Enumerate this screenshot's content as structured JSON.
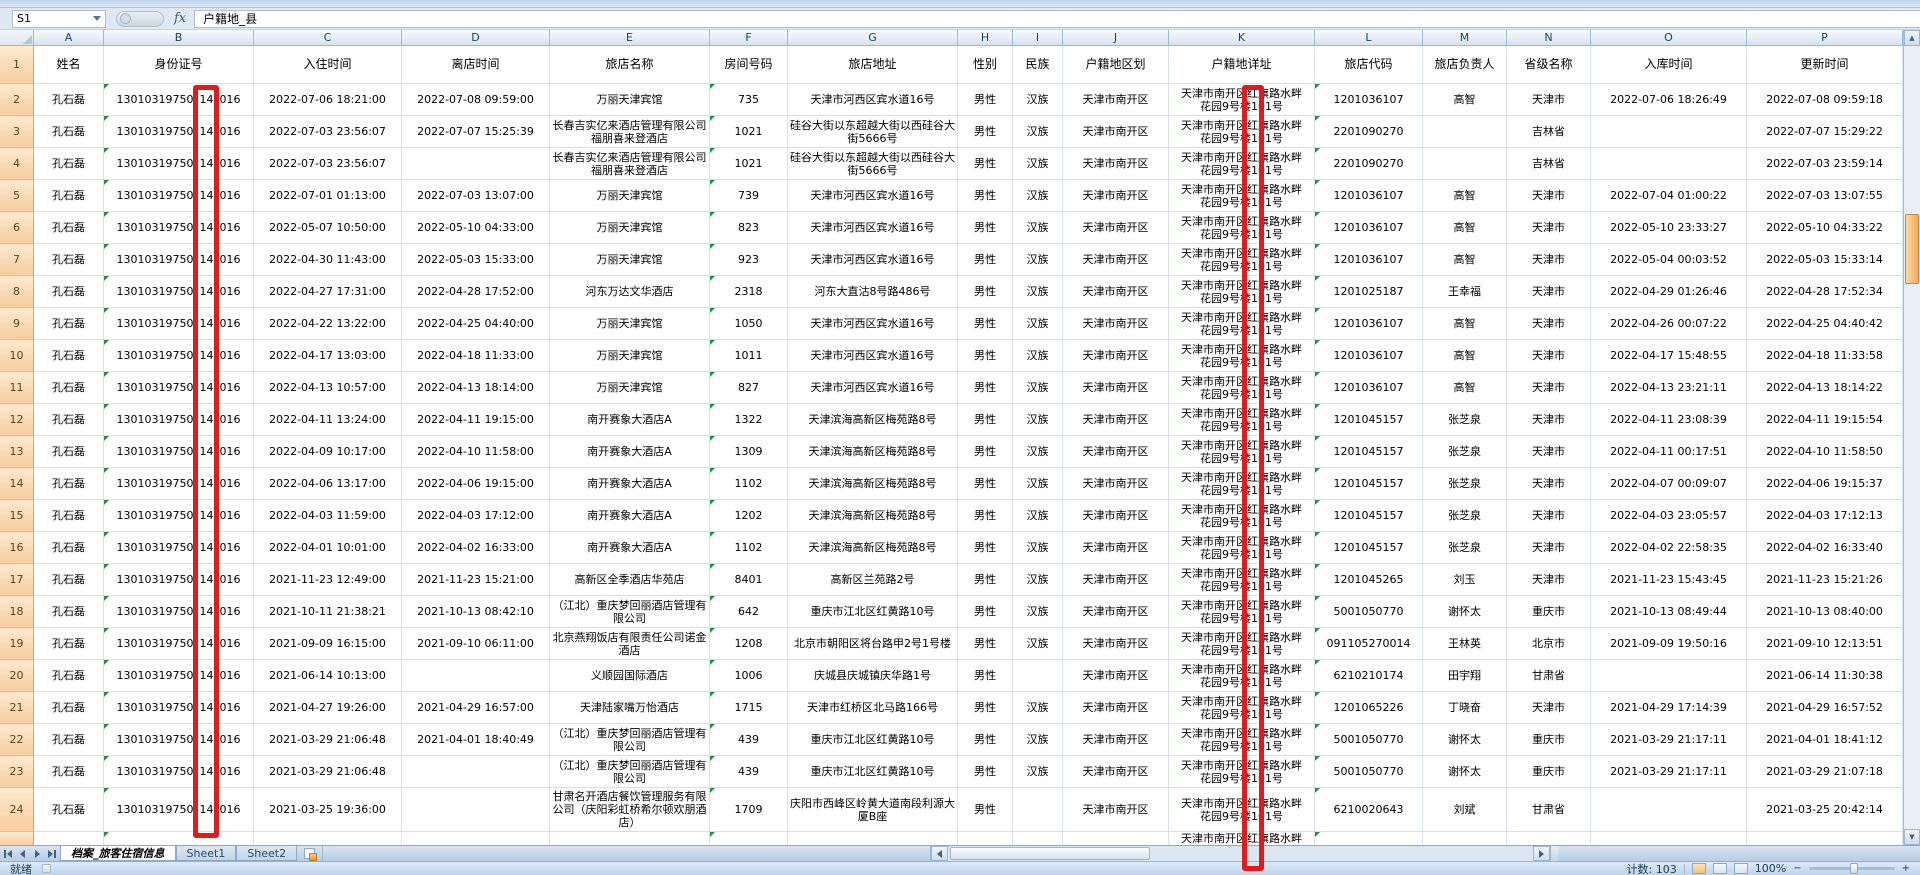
{
  "window": {
    "name_box": "S1",
    "fx_label": "fx",
    "formula_value": "户籍地_县"
  },
  "columns": [
    {
      "letter": "A",
      "label": "姓名"
    },
    {
      "letter": "B",
      "label": "身份证号"
    },
    {
      "letter": "C",
      "label": "入住时间"
    },
    {
      "letter": "D",
      "label": "离店时间"
    },
    {
      "letter": "E",
      "label": "旅店名称"
    },
    {
      "letter": "F",
      "label": "房间号码"
    },
    {
      "letter": "G",
      "label": "旅店地址"
    },
    {
      "letter": "H",
      "label": "性别"
    },
    {
      "letter": "I",
      "label": "民族"
    },
    {
      "letter": "J",
      "label": "户籍地区划"
    },
    {
      "letter": "K",
      "label": "户籍地详址"
    },
    {
      "letter": "L",
      "label": "旅店代码"
    },
    {
      "letter": "M",
      "label": "旅店负责人"
    },
    {
      "letter": "N",
      "label": "省级名称"
    },
    {
      "letter": "O",
      "label": "入库时间"
    },
    {
      "letter": "P",
      "label": "更新时间"
    }
  ],
  "header_row_number": "1",
  "rows": [
    {
      "n": "2",
      "name": "孔石磊",
      "idp": "13010319750",
      "idm": "14",
      "ids": "016",
      "cin": "2022-07-06 18:21:00",
      "cout": "2022-07-08 09:59:00",
      "hotel": "万丽天津宾馆",
      "room": "735",
      "haddr": "天津市河西区宾水道16号",
      "sex": "男性",
      "eth": "汉族",
      "reg": "天津市南开区",
      "k1": "天津市南开区红旗路水畔",
      "k2": "花园9号楼101号",
      "code": "1201036107",
      "mgr": "高智",
      "prov": "天津市",
      "ent": "2022-07-06 18:26:49",
      "upd": "2022-07-08 09:59:18"
    },
    {
      "n": "3",
      "name": "孔石磊",
      "idp": "13010319750",
      "idm": "14",
      "ids": "016",
      "cin": "2022-07-03 23:56:07",
      "cout": "2022-07-07 15:25:39",
      "hotel": "长春吉实亿来酒店管理有限公司福朋喜来登酒店",
      "room": "1021",
      "haddr": "硅谷大街以东超越大街以西硅谷大街5666号",
      "sex": "男性",
      "eth": "汉族",
      "reg": "天津市南开区",
      "k1": "天津市南开区红旗路水畔",
      "k2": "花园9号楼101号",
      "code": "2201090270",
      "mgr": "",
      "prov": "吉林省",
      "ent": "",
      "upd": "2022-07-07 15:29:22"
    },
    {
      "n": "4",
      "name": "孔石磊",
      "idp": "13010319750",
      "idm": "14",
      "ids": "016",
      "cin": "2022-07-03 23:56:07",
      "cout": "",
      "hotel": "长春吉实亿来酒店管理有限公司福朋喜来登酒店",
      "room": "1021",
      "haddr": "硅谷大街以东超越大街以西硅谷大街5666号",
      "sex": "男性",
      "eth": "汉族",
      "reg": "天津市南开区",
      "k1": "天津市南开区红旗路水畔",
      "k2": "花园9号楼101号",
      "code": "2201090270",
      "mgr": "",
      "prov": "吉林省",
      "ent": "",
      "upd": "2022-07-03 23:59:14"
    },
    {
      "n": "5",
      "name": "孔石磊",
      "idp": "13010319750",
      "idm": "14",
      "ids": "016",
      "cin": "2022-07-01 01:13:00",
      "cout": "2022-07-03 13:07:00",
      "hotel": "万丽天津宾馆",
      "room": "739",
      "haddr": "天津市河西区宾水道16号",
      "sex": "男性",
      "eth": "汉族",
      "reg": "天津市南开区",
      "k1": "天津市南开区红旗路水畔",
      "k2": "花园9号楼101号",
      "code": "1201036107",
      "mgr": "高智",
      "prov": "天津市",
      "ent": "2022-07-04 01:00:22",
      "upd": "2022-07-03 13:07:55"
    },
    {
      "n": "6",
      "name": "孔石磊",
      "idp": "13010319750",
      "idm": "14",
      "ids": "016",
      "cin": "2022-05-07 10:50:00",
      "cout": "2022-05-10 04:33:00",
      "hotel": "万丽天津宾馆",
      "room": "823",
      "haddr": "天津市河西区宾水道16号",
      "sex": "男性",
      "eth": "汉族",
      "reg": "天津市南开区",
      "k1": "天津市南开区红旗路水畔",
      "k2": "花园9号楼101号",
      "code": "1201036107",
      "mgr": "高智",
      "prov": "天津市",
      "ent": "2022-05-10 23:33:27",
      "upd": "2022-05-10 04:33:22"
    },
    {
      "n": "7",
      "name": "孔石磊",
      "idp": "13010319750",
      "idm": "14",
      "ids": "016",
      "cin": "2022-04-30 11:43:00",
      "cout": "2022-05-03 15:33:00",
      "hotel": "万丽天津宾馆",
      "room": "923",
      "haddr": "天津市河西区宾水道16号",
      "sex": "男性",
      "eth": "汉族",
      "reg": "天津市南开区",
      "k1": "天津市南开区红旗路水畔",
      "k2": "花园9号楼101号",
      "code": "1201036107",
      "mgr": "高智",
      "prov": "天津市",
      "ent": "2022-05-04 00:03:52",
      "upd": "2022-05-03 15:33:14"
    },
    {
      "n": "8",
      "name": "孔石磊",
      "idp": "13010319750",
      "idm": "14",
      "ids": "016",
      "cin": "2022-04-27 17:31:00",
      "cout": "2022-04-28 17:52:00",
      "hotel": "河东万达文华酒店",
      "room": "2318",
      "haddr": "河东大直沽8号路486号",
      "sex": "男性",
      "eth": "汉族",
      "reg": "天津市南开区",
      "k1": "天津市南开区红旗路水畔",
      "k2": "花园9号楼101号",
      "code": "1201025187",
      "mgr": "王幸福",
      "prov": "天津市",
      "ent": "2022-04-29 01:26:46",
      "upd": "2022-04-28 17:52:34"
    },
    {
      "n": "9",
      "name": "孔石磊",
      "idp": "13010319750",
      "idm": "14",
      "ids": "016",
      "cin": "2022-04-22 13:22:00",
      "cout": "2022-04-25 04:40:00",
      "hotel": "万丽天津宾馆",
      "room": "1050",
      "haddr": "天津市河西区宾水道16号",
      "sex": "男性",
      "eth": "汉族",
      "reg": "天津市南开区",
      "k1": "天津市南开区红旗路水畔",
      "k2": "花园9号楼101号",
      "code": "1201036107",
      "mgr": "高智",
      "prov": "天津市",
      "ent": "2022-04-26 00:07:22",
      "upd": "2022-04-25 04:40:42"
    },
    {
      "n": "10",
      "name": "孔石磊",
      "idp": "13010319750",
      "idm": "14",
      "ids": "016",
      "cin": "2022-04-17 13:03:00",
      "cout": "2022-04-18 11:33:00",
      "hotel": "万丽天津宾馆",
      "room": "1011",
      "haddr": "天津市河西区宾水道16号",
      "sex": "男性",
      "eth": "汉族",
      "reg": "天津市南开区",
      "k1": "天津市南开区红旗路水畔",
      "k2": "花园9号楼101号",
      "code": "1201036107",
      "mgr": "高智",
      "prov": "天津市",
      "ent": "2022-04-17 15:48:55",
      "upd": "2022-04-18 11:33:58"
    },
    {
      "n": "11",
      "name": "孔石磊",
      "idp": "13010319750",
      "idm": "14",
      "ids": "016",
      "cin": "2022-04-13 10:57:00",
      "cout": "2022-04-13 18:14:00",
      "hotel": "万丽天津宾馆",
      "room": "827",
      "haddr": "天津市河西区宾水道16号",
      "sex": "男性",
      "eth": "汉族",
      "reg": "天津市南开区",
      "k1": "天津市南开区红旗路水畔",
      "k2": "花园9号楼101号",
      "code": "1201036107",
      "mgr": "高智",
      "prov": "天津市",
      "ent": "2022-04-13 23:21:11",
      "upd": "2022-04-13 18:14:22"
    },
    {
      "n": "12",
      "name": "孔石磊",
      "idp": "13010319750",
      "idm": "14",
      "ids": "016",
      "cin": "2022-04-11 13:24:00",
      "cout": "2022-04-11 19:15:00",
      "hotel": "南开赛象大酒店A",
      "room": "1322",
      "haddr": "天津滨海高新区梅苑路8号",
      "sex": "男性",
      "eth": "汉族",
      "reg": "天津市南开区",
      "k1": "天津市南开区红旗路水畔",
      "k2": "花园9号楼101号",
      "code": "1201045157",
      "mgr": "张芝泉",
      "prov": "天津市",
      "ent": "2022-04-11 23:08:39",
      "upd": "2022-04-11 19:15:54"
    },
    {
      "n": "13",
      "name": "孔石磊",
      "idp": "13010319750",
      "idm": "14",
      "ids": "016",
      "cin": "2022-04-09 10:17:00",
      "cout": "2022-04-10 11:58:00",
      "hotel": "南开赛象大酒店A",
      "room": "1309",
      "haddr": "天津滨海高新区梅苑路8号",
      "sex": "男性",
      "eth": "汉族",
      "reg": "天津市南开区",
      "k1": "天津市南开区红旗路水畔",
      "k2": "花园9号楼101号",
      "code": "1201045157",
      "mgr": "张芝泉",
      "prov": "天津市",
      "ent": "2022-04-11 00:17:51",
      "upd": "2022-04-10 11:58:50"
    },
    {
      "n": "14",
      "name": "孔石磊",
      "idp": "13010319750",
      "idm": "14",
      "ids": "016",
      "cin": "2022-04-06 13:17:00",
      "cout": "2022-04-06 19:15:00",
      "hotel": "南开赛象大酒店A",
      "room": "1102",
      "haddr": "天津滨海高新区梅苑路8号",
      "sex": "男性",
      "eth": "汉族",
      "reg": "天津市南开区",
      "k1": "天津市南开区红旗路水畔",
      "k2": "花园9号楼101号",
      "code": "1201045157",
      "mgr": "张芝泉",
      "prov": "天津市",
      "ent": "2022-04-07 00:09:07",
      "upd": "2022-04-06 19:15:37"
    },
    {
      "n": "15",
      "name": "孔石磊",
      "idp": "13010319750",
      "idm": "14",
      "ids": "016",
      "cin": "2022-04-03 11:59:00",
      "cout": "2022-04-03 17:12:00",
      "hotel": "南开赛象大酒店A",
      "room": "1202",
      "haddr": "天津滨海高新区梅苑路8号",
      "sex": "男性",
      "eth": "汉族",
      "reg": "天津市南开区",
      "k1": "天津市南开区红旗路水畔",
      "k2": "花园9号楼101号",
      "code": "1201045157",
      "mgr": "张芝泉",
      "prov": "天津市",
      "ent": "2022-04-03 23:05:57",
      "upd": "2022-04-03 17:12:13"
    },
    {
      "n": "16",
      "name": "孔石磊",
      "idp": "13010319750",
      "idm": "14",
      "ids": "016",
      "cin": "2022-04-01 10:01:00",
      "cout": "2022-04-02 16:33:00",
      "hotel": "南开赛象大酒店A",
      "room": "1102",
      "haddr": "天津滨海高新区梅苑路8号",
      "sex": "男性",
      "eth": "汉族",
      "reg": "天津市南开区",
      "k1": "天津市南开区红旗路水畔",
      "k2": "花园9号楼101号",
      "code": "1201045157",
      "mgr": "张芝泉",
      "prov": "天津市",
      "ent": "2022-04-02 22:58:35",
      "upd": "2022-04-02 16:33:40"
    },
    {
      "n": "17",
      "name": "孔石磊",
      "idp": "13010319750",
      "idm": "14",
      "ids": "016",
      "cin": "2021-11-23 12:49:00",
      "cout": "2021-11-23 15:21:00",
      "hotel": "高新区全季酒店华苑店",
      "room": "8401",
      "haddr": "高新区兰苑路2号",
      "sex": "男性",
      "eth": "汉族",
      "reg": "天津市南开区",
      "k1": "天津市南开区红旗路水畔",
      "k2": "花园9号楼101号",
      "code": "1201045265",
      "mgr": "刘玉",
      "prov": "天津市",
      "ent": "2021-11-23 15:43:45",
      "upd": "2021-11-23 15:21:26"
    },
    {
      "n": "18",
      "name": "孔石磊",
      "idp": "13010319750",
      "idm": "14",
      "ids": "016",
      "cin": "2021-10-11 21:38:21",
      "cout": "2021-10-13 08:42:10",
      "hotel": "（江北）重庆梦回丽酒店管理有限公司",
      "room": "642",
      "haddr": "重庆市江北区红黄路10号",
      "sex": "男性",
      "eth": "汉族",
      "reg": "天津市南开区",
      "k1": "天津市南开区红旗路水畔",
      "k2": "花园9号楼101号",
      "code": "5001050770",
      "mgr": "谢怀太",
      "prov": "重庆市",
      "ent": "2021-10-13 08:49:44",
      "upd": "2021-10-13 08:40:00"
    },
    {
      "n": "19",
      "name": "孔石磊",
      "idp": "13010319750",
      "idm": "14",
      "ids": "016",
      "cin": "2021-09-09 16:15:00",
      "cout": "2021-09-10 06:11:00",
      "hotel": "北京燕翔饭店有限责任公司诺金酒店",
      "room": "1208",
      "haddr": "北京市朝阳区将台路甲2号1号楼",
      "sex": "男性",
      "eth": "汉族",
      "reg": "天津市南开区",
      "k1": "天津市南开区红旗路水畔",
      "k2": "花园9号楼101号",
      "code": "091105270014",
      "mgr": "王林英",
      "prov": "北京市",
      "ent": "2021-09-09 19:50:16",
      "upd": "2021-09-10 12:13:51"
    },
    {
      "n": "20",
      "name": "孔石磊",
      "idp": "13010319750",
      "idm": "14",
      "ids": "016",
      "cin": "2021-06-14 10:13:00",
      "cout": "",
      "hotel": "义顺园国际酒店",
      "room": "1006",
      "haddr": "庆城县庆城镇庆华路1号",
      "sex": "男性",
      "eth": "",
      "reg": "天津市南开区",
      "k1": "天津市南开区红旗路水畔",
      "k2": "花园9号楼101号",
      "code": "6210210174",
      "mgr": "田宇翔",
      "prov": "甘肃省",
      "ent": "",
      "upd": "2021-06-14 11:30:38"
    },
    {
      "n": "21",
      "name": "孔石磊",
      "idp": "13010319750",
      "idm": "14",
      "ids": "016",
      "cin": "2021-04-27 19:26:00",
      "cout": "2021-04-29 16:57:00",
      "hotel": "天津陆家嘴万怡酒店",
      "room": "1715",
      "haddr": "天津市红桥区北马路166号",
      "sex": "男性",
      "eth": "汉族",
      "reg": "天津市南开区",
      "k1": "天津市南开区红旗路水畔",
      "k2": "花园9号楼101号",
      "code": "1201065226",
      "mgr": "丁晓奋",
      "prov": "天津市",
      "ent": "2021-04-29 17:14:39",
      "upd": "2021-04-29 16:57:52"
    },
    {
      "n": "22",
      "name": "孔石磊",
      "idp": "13010319750",
      "idm": "14",
      "ids": "016",
      "cin": "2021-03-29 21:06:48",
      "cout": "2021-04-01 18:40:49",
      "hotel": "（江北）重庆梦回丽酒店管理有限公司",
      "room": "439",
      "haddr": "重庆市江北区红黄路10号",
      "sex": "男性",
      "eth": "汉族",
      "reg": "天津市南开区",
      "k1": "天津市南开区红旗路水畔",
      "k2": "花园9号楼101号",
      "code": "5001050770",
      "mgr": "谢怀太",
      "prov": "重庆市",
      "ent": "2021-03-29 21:17:11",
      "upd": "2021-04-01 18:41:12"
    },
    {
      "n": "23",
      "name": "孔石磊",
      "idp": "13010319750",
      "idm": "14",
      "ids": "016",
      "cin": "2021-03-29 21:06:48",
      "cout": "",
      "hotel": "（江北）重庆梦回丽酒店管理有限公司",
      "room": "439",
      "haddr": "重庆市江北区红黄路10号",
      "sex": "男性",
      "eth": "汉族",
      "reg": "天津市南开区",
      "k1": "天津市南开区红旗路水畔",
      "k2": "花园9号楼101号",
      "code": "5001050770",
      "mgr": "谢怀太",
      "prov": "重庆市",
      "ent": "2021-03-29 21:17:11",
      "upd": "2021-03-29 21:07:18"
    },
    {
      "n": "24",
      "h": 44,
      "name": "孔石磊",
      "idp": "13010319750",
      "idm": "14",
      "ids": "016",
      "cin": "2021-03-25 19:36:00",
      "cout": "",
      "hotel": "甘肃名开酒店餐饮管理服务有限公司（庆阳彩虹桥希尔顿欢朋酒店）",
      "room": "1709",
      "haddr": "庆阳市西峰区岭黄大道南段利源大厦B座",
      "sex": "男性",
      "eth": "",
      "reg": "天津市南开区",
      "k1": "天津市南开区红旗路水畔",
      "k2": "花园9号楼101号",
      "code": "6210020643",
      "mgr": "刘斌",
      "prov": "甘肃省",
      "ent": "",
      "upd": "2021-03-25 20:42:14"
    }
  ],
  "partial_row": {
    "k1": "天津市南开区红旗路水畔"
  },
  "sheet_tabs": {
    "active": "档案_旅客住宿信息",
    "others": [
      "Sheet1",
      "Sheet2"
    ]
  },
  "status_bar": {
    "ready": "就绪",
    "count": "计数: 103",
    "zoom": "100%"
  },
  "annotations": {
    "red_color": "#e11b1b",
    "id_boxed_digits": "14",
    "address_boxed_char": "红"
  }
}
